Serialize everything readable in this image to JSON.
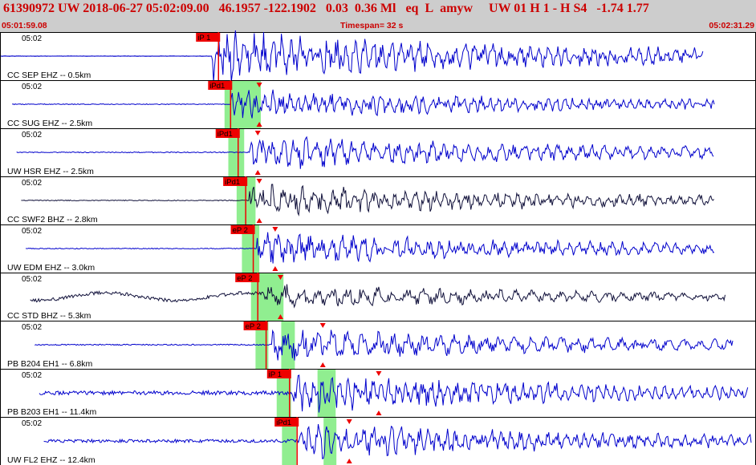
{
  "header": {
    "event_id": "61390972",
    "network": "UW",
    "datetime": "2018-06-27 05:02:09.00",
    "lat": "46.1957",
    "lon": "-122.1902",
    "depth": "0.03",
    "magnitude": "0.36 Ml",
    "event_type": "eq",
    "quality": "L",
    "author": "amyw",
    "extra": "UW 01  H   1  -  H S4",
    "extra_vals": "-1.74  1.77",
    "start_time": "05:01:59.08",
    "timespan": "Timespan=  32 s",
    "end_time": "05:02:31.29"
  },
  "colors": {
    "header_bg": "#cdcdcd",
    "header_text": "#cc0000",
    "trace_blue": "#0000cc",
    "trace_dark": "#10103a",
    "pick_red": "#ee0000",
    "window_green": "#90ee90"
  },
  "traces": [
    {
      "time_label": "05:02",
      "station": "CC SEP EHZ -- 0.5km",
      "pick": "iP 1",
      "pick_time": 0.289,
      "color": "blue",
      "onset": 0.28,
      "end": 0.93,
      "amp": 0.92,
      "noise": 0.01,
      "freq": 1.0,
      "windows": []
    },
    {
      "time_label": "05:02",
      "station": "CC SUG EHZ -- 2.5km",
      "pick": "iPd1",
      "pick_time": 0.305,
      "color": "blue",
      "onset": 0.305,
      "end": 0.945,
      "amp": 0.55,
      "noise": 0.03,
      "freq": 1.1,
      "windows": [
        [
          0.297,
          0.32
        ],
        [
          0.31,
          0.345
        ]
      ],
      "s_marker": 0.343
    },
    {
      "time_label": "05:02",
      "station": "UW HSR EHZ -- 2.5km",
      "pick": "iPd1",
      "pick_time": 0.315,
      "color": "blue",
      "onset": 0.33,
      "end": 0.945,
      "amp": 0.65,
      "noise": 0.03,
      "freq": 0.8,
      "windows": [
        [
          0.302,
          0.323
        ]
      ],
      "s_marker": 0.341
    },
    {
      "time_label": "05:02",
      "station": "CC SWF2 BHZ -- 2.8km",
      "pick": "iPd1",
      "pick_time": 0.325,
      "color": "dark",
      "onset": 0.33,
      "end": 0.945,
      "amp": 0.6,
      "noise": 0.03,
      "freq": 0.9,
      "windows": [
        [
          0.313,
          0.338
        ]
      ],
      "s_marker": 0.343
    },
    {
      "time_label": "05:02",
      "station": "UW EDM EHZ -- 3.0km",
      "pick": "eP 2",
      "pick_time": 0.335,
      "color": "blue",
      "onset": 0.34,
      "end": 0.945,
      "amp": 0.6,
      "noise": 0.03,
      "freq": 0.85,
      "windows": [
        [
          0.32,
          0.343
        ]
      ],
      "s_marker": 0.364
    },
    {
      "time_label": "05:02",
      "station": "CC STD BHZ -- 5.3km",
      "pick": "eP 2",
      "pick_time": 0.341,
      "color": "dark",
      "onset": 0.35,
      "end": 0.96,
      "amp": 0.45,
      "noise": 0.15,
      "freq": 0.6,
      "windows": [
        [
          0.332,
          0.358
        ],
        [
          0.355,
          0.375
        ]
      ],
      "s_marker": 0.371
    },
    {
      "time_label": "05:02",
      "station": "PB B204 EH1 -- 6.8km",
      "pick": "eP 2",
      "pick_time": 0.352,
      "color": "blue",
      "onset": 0.36,
      "end": 0.97,
      "amp": 0.6,
      "noise": 0.04,
      "freq": 0.6,
      "windows": [
        [
          0.338,
          0.355
        ],
        [
          0.372,
          0.39
        ]
      ],
      "s_marker": 0.427
    },
    {
      "time_label": "05:02",
      "station": "PB B203 EH1 -- 11.4km",
      "pick": "iP 1",
      "pick_time": 0.383,
      "color": "blue",
      "onset": 0.385,
      "end": 0.99,
      "amp": 0.7,
      "noise": 0.12,
      "freq": 1.1,
      "windows": [
        [
          0.366,
          0.385
        ],
        [
          0.42,
          0.444
        ]
      ],
      "s_marker": 0.501
    },
    {
      "time_label": "05:02",
      "station": "UW FL2 EHZ -- 12.4km",
      "pick": "iPd1",
      "pick_time": 0.393,
      "color": "blue",
      "onset": 0.395,
      "end": 0.995,
      "amp": 0.65,
      "noise": 0.1,
      "freq": 1.0,
      "windows": [
        [
          0.373,
          0.392
        ],
        [
          0.428,
          0.445
        ]
      ],
      "s_marker": 0.462
    }
  ]
}
